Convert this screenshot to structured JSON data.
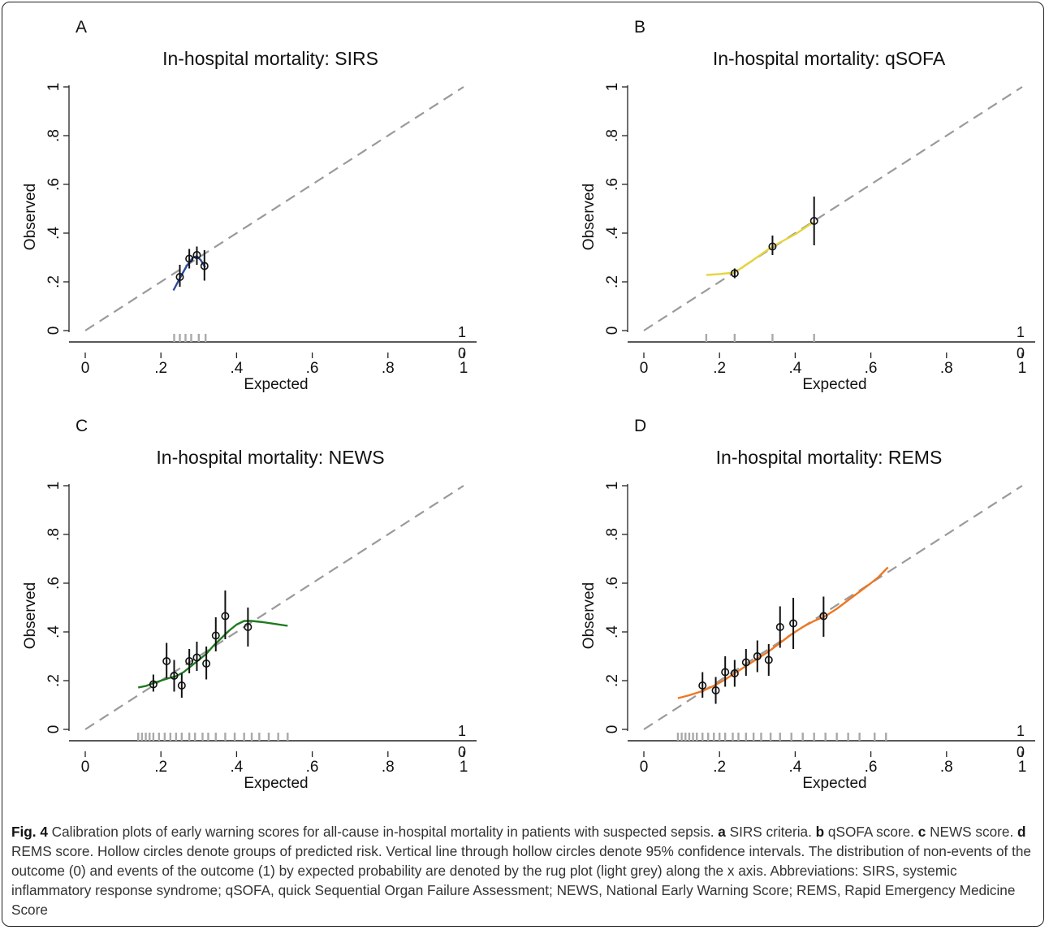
{
  "chart_data": [
    {
      "type": "scatter",
      "panel_label": "A",
      "title": "In-hospital mortality: SIRS",
      "xlabel": "Expected",
      "ylabel": "Observed",
      "xlim": [
        0,
        1
      ],
      "ylim": [
        0,
        1
      ],
      "x_ticks": [
        "0",
        ".2",
        ".4",
        ".6",
        ".8",
        "1"
      ],
      "y_ticks": [
        "0",
        ".2",
        ".4",
        ".6",
        ".8",
        "1"
      ],
      "reference_line": "dashed grey y = x",
      "smooth_color": "#2b4c9b",
      "points": [
        {
          "x": 0.25,
          "y": 0.22,
          "lo": 0.18,
          "hi": 0.27
        },
        {
          "x": 0.275,
          "y": 0.295,
          "lo": 0.255,
          "hi": 0.335
        },
        {
          "x": 0.295,
          "y": 0.31,
          "lo": 0.27,
          "hi": 0.345
        },
        {
          "x": 0.315,
          "y": 0.265,
          "lo": 0.205,
          "hi": 0.33
        }
      ],
      "smooth": [
        [
          0.233,
          0.165
        ],
        [
          0.25,
          0.215
        ],
        [
          0.268,
          0.265
        ],
        [
          0.285,
          0.3
        ],
        [
          0.295,
          0.305
        ],
        [
          0.305,
          0.29
        ],
        [
          0.317,
          0.26
        ]
      ],
      "rug_top": [
        0.235,
        0.25,
        0.265,
        0.28,
        0.3,
        0.318
      ],
      "rug_bottom": [],
      "rug_labels": [
        "1",
        "0"
      ]
    },
    {
      "type": "scatter",
      "panel_label": "B",
      "title": "In-hospital mortality: qSOFA",
      "xlabel": "Expected",
      "ylabel": "Observed",
      "xlim": [
        0,
        1
      ],
      "ylim": [
        0,
        1
      ],
      "x_ticks": [
        "0",
        ".2",
        ".4",
        ".6",
        ".8",
        "1"
      ],
      "y_ticks": [
        "0",
        ".2",
        ".4",
        ".6",
        ".8",
        "1"
      ],
      "reference_line": "dashed grey y = x",
      "smooth_color": "#e6d43a",
      "points": [
        {
          "x": 0.24,
          "y": 0.235,
          "lo": 0.215,
          "hi": 0.255
        },
        {
          "x": 0.34,
          "y": 0.345,
          "lo": 0.31,
          "hi": 0.39
        },
        {
          "x": 0.45,
          "y": 0.45,
          "lo": 0.35,
          "hi": 0.55
        }
      ],
      "smooth": [
        [
          0.165,
          0.228
        ],
        [
          0.2,
          0.232
        ],
        [
          0.24,
          0.238
        ],
        [
          0.28,
          0.28
        ],
        [
          0.34,
          0.345
        ],
        [
          0.4,
          0.395
        ],
        [
          0.45,
          0.447
        ]
      ],
      "rug_top": [
        0.165,
        0.24,
        0.34,
        0.45
      ],
      "rug_bottom": [],
      "rug_labels": [
        "1",
        "0"
      ]
    },
    {
      "type": "scatter",
      "panel_label": "C",
      "title": "In-hospital mortality: NEWS",
      "xlabel": "Expected",
      "ylabel": "Observed",
      "xlim": [
        0,
        1
      ],
      "ylim": [
        0,
        1
      ],
      "x_ticks": [
        "0",
        ".2",
        ".4",
        ".6",
        ".8",
        "1"
      ],
      "y_ticks": [
        "0",
        ".2",
        ".4",
        ".6",
        ".8",
        "1"
      ],
      "reference_line": "dashed grey y = x",
      "smooth_color": "#1f7a1f",
      "points": [
        {
          "x": 0.18,
          "y": 0.185,
          "lo": 0.155,
          "hi": 0.225
        },
        {
          "x": 0.215,
          "y": 0.28,
          "lo": 0.21,
          "hi": 0.355
        },
        {
          "x": 0.235,
          "y": 0.22,
          "lo": 0.155,
          "hi": 0.285
        },
        {
          "x": 0.255,
          "y": 0.18,
          "lo": 0.13,
          "hi": 0.23
        },
        {
          "x": 0.275,
          "y": 0.28,
          "lo": 0.23,
          "hi": 0.33
        },
        {
          "x": 0.295,
          "y": 0.295,
          "lo": 0.24,
          "hi": 0.36
        },
        {
          "x": 0.32,
          "y": 0.27,
          "lo": 0.205,
          "hi": 0.34
        },
        {
          "x": 0.345,
          "y": 0.385,
          "lo": 0.32,
          "hi": 0.46
        },
        {
          "x": 0.37,
          "y": 0.465,
          "lo": 0.37,
          "hi": 0.57
        },
        {
          "x": 0.43,
          "y": 0.42,
          "lo": 0.34,
          "hi": 0.5
        }
      ],
      "smooth": [
        [
          0.14,
          0.172
        ],
        [
          0.16,
          0.178
        ],
        [
          0.18,
          0.19
        ],
        [
          0.2,
          0.2
        ],
        [
          0.22,
          0.21
        ],
        [
          0.24,
          0.218
        ],
        [
          0.26,
          0.235
        ],
        [
          0.28,
          0.26
        ],
        [
          0.3,
          0.285
        ],
        [
          0.32,
          0.31
        ],
        [
          0.34,
          0.345
        ],
        [
          0.36,
          0.375
        ],
        [
          0.38,
          0.405
        ],
        [
          0.4,
          0.43
        ],
        [
          0.42,
          0.445
        ],
        [
          0.44,
          0.445
        ],
        [
          0.47,
          0.44
        ],
        [
          0.5,
          0.433
        ],
        [
          0.535,
          0.425
        ]
      ],
      "rug_top": [
        0.14,
        0.15,
        0.16,
        0.17,
        0.18,
        0.195,
        0.21,
        0.225,
        0.24,
        0.255,
        0.275,
        0.29,
        0.31,
        0.325,
        0.345,
        0.37,
        0.395,
        0.42,
        0.44,
        0.46,
        0.485,
        0.51
      ],
      "rug_bottom": [
        0.535
      ],
      "rug_labels": [
        "1",
        "0"
      ]
    },
    {
      "type": "scatter",
      "panel_label": "D",
      "title": "In-hospital mortality: REMS",
      "xlabel": "Expected",
      "ylabel": "Observed",
      "xlim": [
        0,
        1
      ],
      "ylim": [
        0,
        1
      ],
      "x_ticks": [
        "0",
        ".2",
        ".4",
        ".6",
        ".8",
        "1"
      ],
      "y_ticks": [
        "0",
        ".2",
        ".4",
        ".6",
        ".8",
        "1"
      ],
      "reference_line": "dashed grey y = x",
      "smooth_color": "#ee7722",
      "points": [
        {
          "x": 0.155,
          "y": 0.18,
          "lo": 0.13,
          "hi": 0.235
        },
        {
          "x": 0.19,
          "y": 0.16,
          "lo": 0.105,
          "hi": 0.215
        },
        {
          "x": 0.215,
          "y": 0.235,
          "lo": 0.175,
          "hi": 0.3
        },
        {
          "x": 0.24,
          "y": 0.23,
          "lo": 0.175,
          "hi": 0.285
        },
        {
          "x": 0.27,
          "y": 0.275,
          "lo": 0.22,
          "hi": 0.33
        },
        {
          "x": 0.3,
          "y": 0.3,
          "lo": 0.235,
          "hi": 0.365
        },
        {
          "x": 0.33,
          "y": 0.285,
          "lo": 0.22,
          "hi": 0.35
        },
        {
          "x": 0.36,
          "y": 0.42,
          "lo": 0.335,
          "hi": 0.505
        },
        {
          "x": 0.395,
          "y": 0.435,
          "lo": 0.33,
          "hi": 0.54
        },
        {
          "x": 0.475,
          "y": 0.465,
          "lo": 0.38,
          "hi": 0.545
        }
      ],
      "smooth": [
        [
          0.09,
          0.128
        ],
        [
          0.12,
          0.14
        ],
        [
          0.15,
          0.155
        ],
        [
          0.18,
          0.175
        ],
        [
          0.21,
          0.2
        ],
        [
          0.24,
          0.23
        ],
        [
          0.27,
          0.26
        ],
        [
          0.3,
          0.29
        ],
        [
          0.33,
          0.32
        ],
        [
          0.36,
          0.355
        ],
        [
          0.39,
          0.39
        ],
        [
          0.42,
          0.42
        ],
        [
          0.45,
          0.445
        ],
        [
          0.48,
          0.465
        ],
        [
          0.51,
          0.495
        ],
        [
          0.54,
          0.53
        ],
        [
          0.57,
          0.565
        ],
        [
          0.6,
          0.6
        ],
        [
          0.62,
          0.625
        ],
        [
          0.645,
          0.665
        ]
      ],
      "rug_top": [
        0.09,
        0.1,
        0.11,
        0.12,
        0.13,
        0.14,
        0.155,
        0.17,
        0.185,
        0.2,
        0.215,
        0.235,
        0.25,
        0.27,
        0.29,
        0.31,
        0.335,
        0.36,
        0.39,
        0.42,
        0.45,
        0.48,
        0.51,
        0.54,
        0.57
      ],
      "rug_bottom": [
        0.61,
        0.64
      ],
      "rug_labels": [
        "1",
        "0"
      ]
    }
  ],
  "caption": {
    "fig_label": "Fig. 4",
    "intro": " Calibration plots of early warning scores for all-cause in-hospital mortality in patients with suspected sepsis. ",
    "a_label": "a",
    "a_text": " SIRS criteria. ",
    "b_label": "b",
    "b_text": " qSOFA score. ",
    "c_label": "c",
    "c_text": " NEWS score. ",
    "d_label": "d",
    "d_text": " REMS score. Hollow circles denote groups of predicted risk. Vertical line through hollow circles denote 95% confidence intervals. The distribution of non-events of the outcome (0) and events of the outcome (1) by expected probability are denoted by the rug plot (light grey) along the x axis. Abbreviations: SIRS, systemic inflammatory response syndrome; qSOFA, quick Sequential Organ Failure Assessment; NEWS, National Early Warning Score; REMS, Rapid Emergency Medicine Score"
  }
}
